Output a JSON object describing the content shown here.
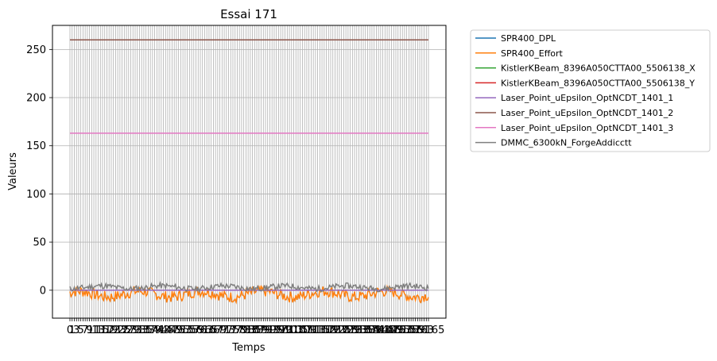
{
  "chart_data": {
    "type": "line",
    "title": "Essai 171",
    "xlabel": "Temps",
    "ylabel": "Valeurs",
    "x_range": [
      0,
      165
    ],
    "ylim": [
      -29,
      275
    ],
    "y_ticks": [
      0,
      50,
      100,
      150,
      200,
      250
    ],
    "x_tick_count": 165,
    "x_tick_label_left": "0",
    "x_tick_label_right": "165",
    "grid": true,
    "legend_placement": "outside-right",
    "series": [
      {
        "name": "SPR400_DPL",
        "color": "#1f77b4",
        "pattern": {
          "base": 0,
          "amp": 0,
          "seed": 1
        }
      },
      {
        "name": "SPR400_Effort",
        "color": "#ff7f0e",
        "pattern": {
          "base": -4,
          "amp": 6,
          "seed": 7
        }
      },
      {
        "name": "KistlerKBeam_8396A050CTTA00_5506138_X",
        "color": "#2ca02c",
        "pattern": {
          "base": 0,
          "amp": 0,
          "seed": 2
        }
      },
      {
        "name": "KistlerKBeam_8396A050CTTA00_5506138_Y",
        "color": "#d62728",
        "pattern": {
          "base": 0,
          "amp": 0,
          "seed": 3
        }
      },
      {
        "name": "Laser_Point_uEpsilon_OptNCDT_1401_1",
        "color": "#9467bd",
        "pattern": {
          "base": 0,
          "amp": 0,
          "seed": 4
        }
      },
      {
        "name": "Laser_Point_uEpsilon_OptNCDT_1401_2",
        "color": "#8c564b",
        "pattern": {
          "base": 260,
          "amp": 0,
          "seed": 5
        }
      },
      {
        "name": "Laser_Point_uEpsilon_OptNCDT_1401_3",
        "color": "#e377c2",
        "pattern": {
          "base": 163,
          "amp": 0,
          "seed": 6
        }
      },
      {
        "name": "DMMC_6300kN_ForgeAddicctt",
        "color": "#7f7f7f",
        "pattern": {
          "base": 3,
          "amp": 3,
          "seed": 11
        }
      }
    ]
  }
}
